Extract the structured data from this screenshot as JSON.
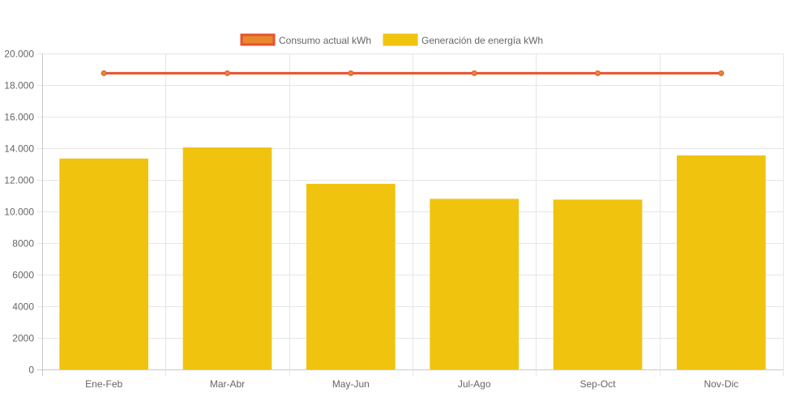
{
  "chart_data": {
    "type": "bar",
    "categories": [
      "Ene-Feb",
      "Mar-Abr",
      "May-Jun",
      "Jul-Ago",
      "Sep-Oct",
      "Nov-Dic"
    ],
    "series": [
      {
        "name": "Consumo actual kWh",
        "type": "line",
        "values": [
          18750,
          18750,
          18750,
          18750,
          18750,
          18750
        ],
        "color": "#e8522f",
        "fill": "#e8882f"
      },
      {
        "name": "Generación de energía kWh",
        "type": "bar",
        "values": [
          13350,
          14050,
          11750,
          10800,
          10750,
          13550
        ],
        "color": "#f0c30f"
      }
    ],
    "ylim": [
      0,
      20000
    ],
    "yticks": [
      0,
      2000,
      4000,
      6000,
      8000,
      10000,
      12000,
      14000,
      16000,
      18000,
      20000
    ],
    "ytick_labels": [
      "0",
      "2000",
      "4000",
      "6000",
      "8000",
      "10.000",
      "12.000",
      "14.000",
      "16.000",
      "18.000",
      "20.000"
    ],
    "grid": true,
    "legend_position": "top-center"
  }
}
